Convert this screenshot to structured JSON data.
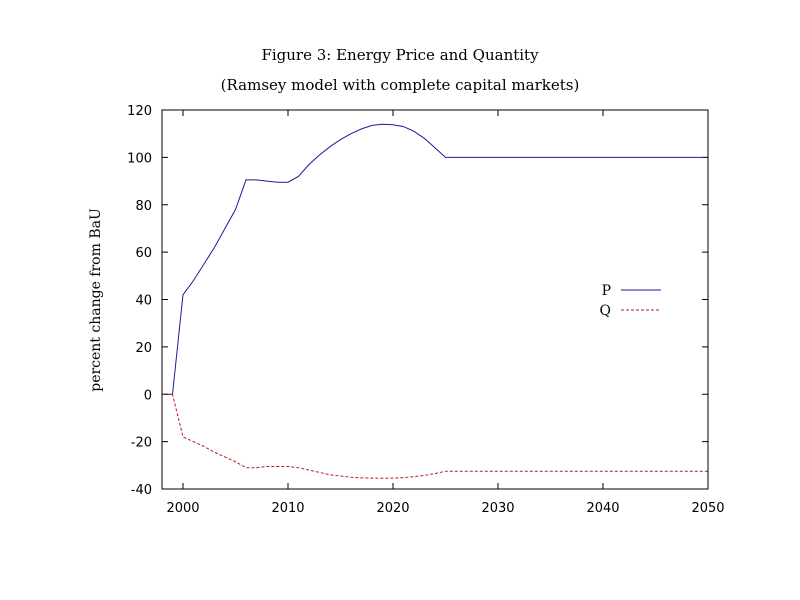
{
  "chart_data": {
    "type": "line",
    "title": "Figure 3: Energy Price and Quantity",
    "subtitle": "(Ramsey model with complete capital markets)",
    "xlabel": "",
    "ylabel": "percent change from BaU",
    "xlim": [
      1998,
      2050
    ],
    "ylim": [
      -40,
      120
    ],
    "xticks": [
      2000,
      2010,
      2020,
      2030,
      2040,
      2050
    ],
    "yticks": [
      -40,
      -20,
      0,
      20,
      40,
      60,
      80,
      100,
      120
    ],
    "grid": false,
    "legend_position": "right",
    "series": [
      {
        "name": "P",
        "color": "#1a1a9a",
        "dash": "solid",
        "x": [
          1998,
          1999,
          2000,
          2001,
          2002,
          2003,
          2004,
          2005,
          2006,
          2007,
          2008,
          2009,
          2010,
          2011,
          2012,
          2013,
          2014,
          2015,
          2016,
          2017,
          2018,
          2019,
          2020,
          2021,
          2022,
          2023,
          2024,
          2025,
          2030,
          2040,
          2050
        ],
        "y": [
          0,
          0,
          42,
          48,
          55,
          62,
          70,
          78,
          90.5,
          90.5,
          90,
          89.5,
          89.5,
          92,
          97,
          101,
          104.5,
          107.5,
          110,
          112,
          113.5,
          114,
          113.8,
          113,
          111,
          108,
          104,
          100,
          100,
          100,
          100
        ]
      },
      {
        "name": "Q",
        "color": "#c01818",
        "dash": "dashed",
        "x": [
          1998,
          1999,
          2000,
          2001,
          2002,
          2003,
          2004,
          2005,
          2006,
          2007,
          2008,
          2009,
          2010,
          2011,
          2012,
          2013,
          2014,
          2015,
          2016,
          2017,
          2018,
          2019,
          2020,
          2021,
          2022,
          2023,
          2024,
          2025,
          2030,
          2040,
          2050
        ],
        "y": [
          0,
          0,
          -18,
          -20,
          -22,
          -24.5,
          -26.5,
          -28.5,
          -31,
          -31,
          -30.5,
          -30.5,
          -30.5,
          -31,
          -32,
          -33,
          -34,
          -34.5,
          -35,
          -35.3,
          -35.4,
          -35.5,
          -35.4,
          -35.2,
          -34.8,
          -34.2,
          -33.5,
          -32.5,
          -32.5,
          -32.5,
          -32.5
        ]
      }
    ]
  }
}
